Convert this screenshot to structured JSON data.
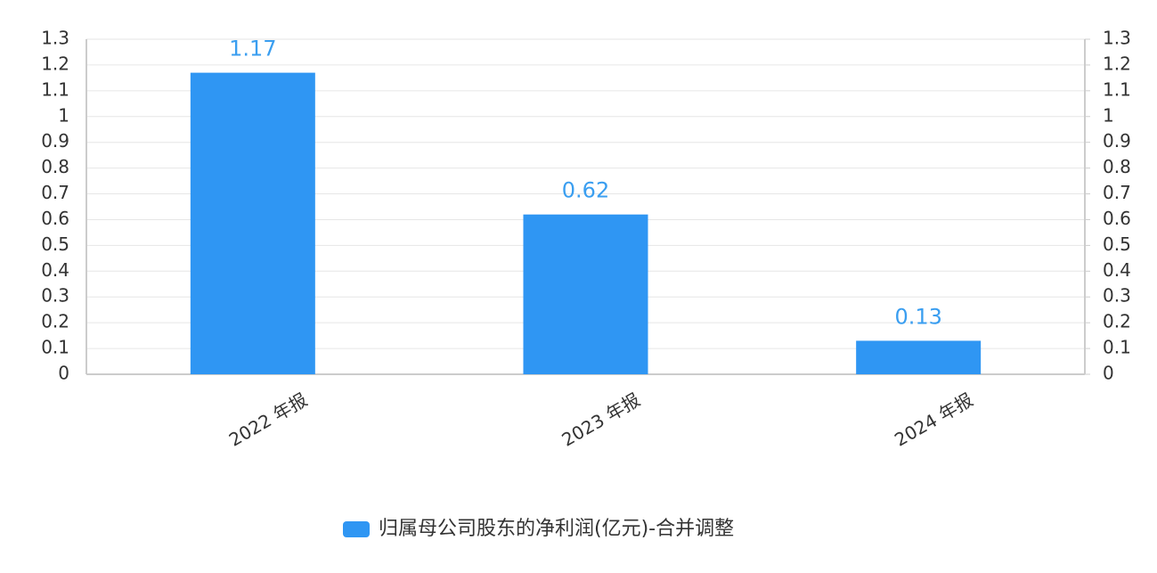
{
  "chart_data": {
    "type": "bar",
    "categories": [
      "2022 年报",
      "2023 年报",
      "2024 年报"
    ],
    "series": [
      {
        "name": "归属母公司股东的净利润(亿元)-合并调整",
        "color": "#2f96f3",
        "values": [
          1.17,
          0.62,
          0.13
        ]
      }
    ],
    "ylim": [
      0,
      1.3
    ],
    "yticks": [
      0,
      0.1,
      0.2,
      0.3,
      0.4,
      0.5,
      0.6,
      0.7,
      0.8,
      0.9,
      1,
      1.1,
      1.2,
      1.3
    ],
    "y2lim": [
      0,
      1.3
    ],
    "y2ticks": [
      0,
      0.1,
      0.2,
      0.3,
      0.4,
      0.5,
      0.6,
      0.7,
      0.8,
      0.9,
      1,
      1.1,
      1.2,
      1.3
    ],
    "grid": true,
    "value_label_color": "#3a9ef0",
    "legend": "bottom"
  }
}
